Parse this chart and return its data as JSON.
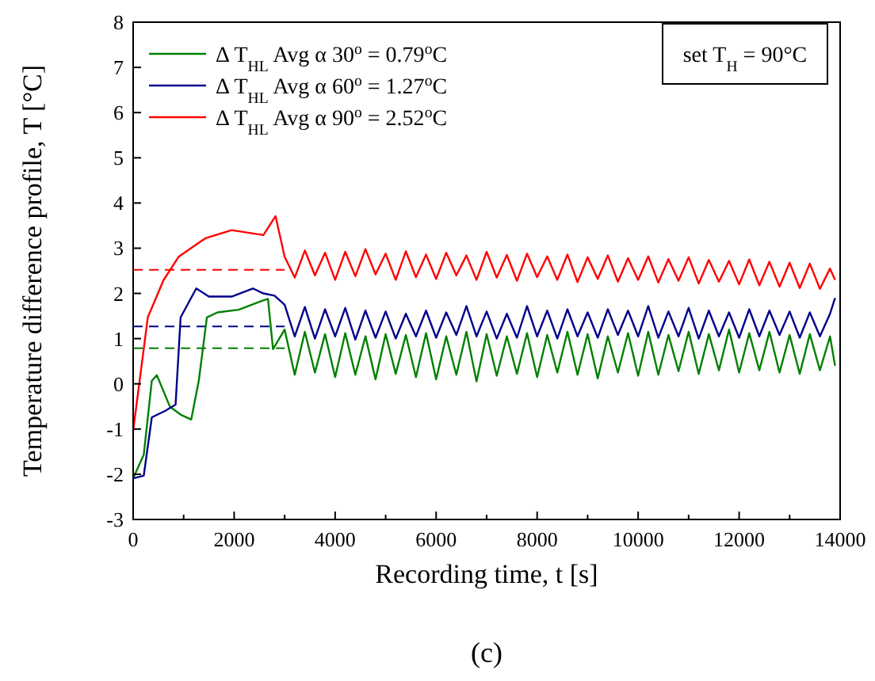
{
  "chart_data": {
    "type": "line",
    "xlabel": "Recording time, t [s]",
    "ylabel": "Temperature difference profile, T [°C]",
    "xlim": [
      0,
      14000
    ],
    "xticks": [
      0,
      {
        "value": 1000,
        "label": null
      },
      2000,
      {
        "value": 3000,
        "label": null
      },
      4000,
      {
        "value": 5000,
        "label": null
      },
      6000,
      {
        "value": 7000,
        "label": null
      },
      8000,
      {
        "value": 9000,
        "label": null
      },
      10000,
      {
        "value": 11000,
        "label": null
      },
      12000,
      {
        "value": 13000,
        "label": null
      },
      14000
    ],
    "ylim": [
      -3,
      8
    ],
    "yticks": [
      -3,
      -2,
      -1,
      0,
      1,
      2,
      3,
      4,
      5,
      6,
      7,
      8
    ],
    "legend": "top left",
    "grid": false,
    "line_style": "solid",
    "marker": "none",
    "series": [
      {
        "name": "Δ T$_{HL}$ Avg α 30$^{o}$ = 0.79$^{o}$C",
        "color": "#008000",
        "x": [
          0,
          210,
          370,
          470,
          730,
          940,
          1150,
          1300,
          1460,
          1670,
          2090,
          2510,
          2670,
          2770,
          3000,
          3200,
          3400,
          3600,
          3800,
          4000,
          4200,
          4400,
          4600,
          4800,
          5000,
          5200,
          5400,
          5600,
          5800,
          6000,
          6200,
          6400,
          6600,
          6800,
          7000,
          7200,
          7400,
          7600,
          7800,
          8000,
          8200,
          8400,
          8600,
          8800,
          9000,
          9200,
          9400,
          9600,
          9800,
          10000,
          10200,
          10400,
          10600,
          10800,
          11000,
          11200,
          11400,
          11600,
          11800,
          12000,
          12200,
          12400,
          12600,
          12800,
          13000,
          13200,
          13400,
          13600,
          13800,
          13900
        ],
        "values": [
          -2.09,
          -1.57,
          0.07,
          0.19,
          -0.51,
          -0.68,
          -0.79,
          0.07,
          1.47,
          1.58,
          1.64,
          1.82,
          1.88,
          0.77,
          1.2,
          0.2,
          1.15,
          0.25,
          1.1,
          0.15,
          1.12,
          0.2,
          1.05,
          0.1,
          1.1,
          0.22,
          1.08,
          0.15,
          1.12,
          0.1,
          1.05,
          0.2,
          1.15,
          0.05,
          1.1,
          0.18,
          1.05,
          0.22,
          1.12,
          0.15,
          1.08,
          0.25,
          1.15,
          0.2,
          1.1,
          0.12,
          1.05,
          0.25,
          1.12,
          0.18,
          1.15,
          0.2,
          1.08,
          0.28,
          1.15,
          0.22,
          1.1,
          0.3,
          1.2,
          0.25,
          1.12,
          0.3,
          1.15,
          0.25,
          1.08,
          0.22,
          1.1,
          0.3,
          1.05,
          0.4
        ]
      },
      {
        "name": "Δ T$_{HL}$ Avg α 60$^{o}$ = 1.27$^{o}$C",
        "color": "#00008b",
        "x": [
          0,
          210,
          370,
          630,
          840,
          940,
          1250,
          1500,
          1950,
          2370,
          2580,
          2800,
          3000,
          3200,
          3400,
          3600,
          3800,
          4000,
          4200,
          4400,
          4600,
          4800,
          5000,
          5200,
          5400,
          5600,
          5800,
          6000,
          6200,
          6400,
          6600,
          6800,
          7000,
          7200,
          7400,
          7600,
          7800,
          8000,
          8200,
          8400,
          8600,
          8800,
          9000,
          9200,
          9400,
          9600,
          9800,
          10000,
          10200,
          10400,
          10600,
          10800,
          11000,
          11200,
          11400,
          11600,
          11800,
          12000,
          12200,
          12400,
          12600,
          12800,
          13000,
          13200,
          13400,
          13600,
          13800,
          13900
        ],
        "values": [
          -2.09,
          -2.03,
          -0.74,
          -0.6,
          -0.46,
          1.47,
          2.11,
          1.93,
          1.93,
          2.11,
          2.0,
          1.95,
          1.75,
          1.05,
          1.7,
          1.0,
          1.65,
          1.05,
          1.68,
          0.98,
          1.62,
          1.02,
          1.6,
          1.0,
          1.55,
          1.05,
          1.62,
          1.02,
          1.58,
          1.08,
          1.72,
          1.05,
          1.6,
          1.0,
          1.55,
          1.02,
          1.72,
          1.05,
          1.62,
          1.0,
          1.65,
          1.05,
          1.58,
          1.02,
          1.65,
          1.08,
          1.62,
          1.05,
          1.72,
          1.02,
          1.6,
          1.05,
          1.68,
          1.0,
          1.62,
          1.05,
          1.58,
          1.02,
          1.65,
          1.05,
          1.62,
          1.08,
          1.6,
          1.02,
          1.58,
          1.05,
          1.55,
          1.9
        ]
      },
      {
        "name": "Δ T$_{HL}$ Avg α 90$^{o}$ = 2.52$^{o}$C",
        "color": "#ff0000",
        "x": [
          0,
          290,
          600,
          900,
          1430,
          1950,
          2580,
          2820,
          3000,
          3200,
          3400,
          3600,
          3800,
          4000,
          4200,
          4400,
          4600,
          4800,
          5000,
          5200,
          5400,
          5600,
          5800,
          6000,
          6200,
          6400,
          6600,
          6800,
          7000,
          7200,
          7400,
          7600,
          7800,
          8000,
          8200,
          8400,
          8600,
          8800,
          9000,
          9200,
          9400,
          9600,
          9800,
          10000,
          10200,
          10400,
          10600,
          10800,
          11000,
          11200,
          11400,
          11600,
          11800,
          12000,
          12200,
          12400,
          12600,
          12800,
          13000,
          13200,
          13400,
          13600,
          13800,
          13900
        ],
        "values": [
          -1.04,
          1.47,
          2.29,
          2.81,
          3.22,
          3.4,
          3.29,
          3.71,
          2.81,
          2.35,
          2.95,
          2.4,
          2.9,
          2.3,
          2.92,
          2.38,
          2.98,
          2.42,
          2.88,
          2.3,
          2.93,
          2.36,
          2.86,
          2.32,
          2.9,
          2.4,
          2.84,
          2.3,
          2.92,
          2.35,
          2.85,
          2.28,
          2.88,
          2.36,
          2.82,
          2.3,
          2.86,
          2.25,
          2.8,
          2.32,
          2.84,
          2.26,
          2.78,
          2.3,
          2.82,
          2.24,
          2.76,
          2.28,
          2.8,
          2.22,
          2.74,
          2.26,
          2.72,
          2.2,
          2.75,
          2.18,
          2.7,
          2.15,
          2.68,
          2.12,
          2.66,
          2.1,
          2.55,
          2.3
        ]
      }
    ],
    "ref_lines": [
      {
        "axis": "y",
        "value": 0.79,
        "color": "#008000",
        "line_style": "dashed"
      },
      {
        "axis": "y",
        "value": 1.27,
        "color": "#00008b",
        "line_style": "dashed"
      },
      {
        "axis": "y",
        "value": 2.52,
        "color": "#ff0000",
        "line_style": "dashed"
      }
    ],
    "annotations": [
      "set T$_{H}$ = 90°C",
      "(c)"
    ]
  }
}
